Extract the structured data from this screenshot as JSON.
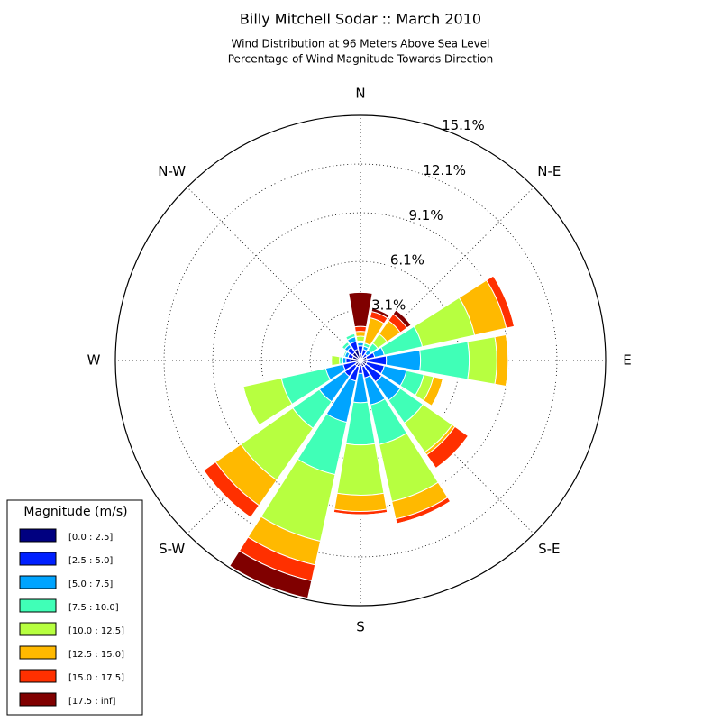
{
  "chart_data": {
    "type": "windrose",
    "title": "Billy Mitchell Sodar :: March 2010",
    "subtitle": [
      "Wind Distribution at 96 Meters Above Sea Level",
      "Percentage of Wind Magnitude Towards Direction"
    ],
    "direction_labels": [
      "N",
      "N-E",
      "E",
      "S-E",
      "S",
      "S-W",
      "W",
      "N-W"
    ],
    "x": [
      0,
      22.5,
      45,
      67.5,
      90,
      112.5,
      135,
      157.5,
      180,
      202.5,
      225,
      247.5,
      270,
      292.5,
      315,
      337.5
    ],
    "ylim": [
      0,
      15.1
    ],
    "yticks": [
      {
        "value": 3.1,
        "label": "3.1%"
      },
      {
        "value": 6.1,
        "label": "6.1%"
      },
      {
        "value": 9.1,
        "label": "9.1%"
      },
      {
        "value": 12.1,
        "label": "12.1%"
      },
      {
        "value": 15.1,
        "label": "15.1%"
      }
    ],
    "grid": true,
    "legend_title": "Magnitude (m/s)",
    "legend": "lower left",
    "series": [
      {
        "name": "[0.0 : 2.5]",
        "color": "#000080",
        "values": [
          0.4,
          0.3,
          0.2,
          0.4,
          0.4,
          0.4,
          0.4,
          0.4,
          0.3,
          0.4,
          0.4,
          0.3,
          0.6,
          0.5,
          0.6,
          0.7
        ]
      },
      {
        "name": "[2.5 : 5.0]",
        "color": "#0020ff",
        "values": [
          0.5,
          0.4,
          0.3,
          0.5,
          1.2,
          1.1,
          1.2,
          0.7,
          0.5,
          0.9,
          0.8,
          0.8,
          0.3,
          0.3,
          0.4,
          0.5
        ]
      },
      {
        "name": "[5.0 : 7.5]",
        "color": "#00a4ff",
        "values": [
          0.2,
          0.2,
          0.3,
          0.6,
          2.1,
          1.4,
          1.4,
          1.7,
          1.8,
          2.6,
          1.9,
          1.1,
          0.2,
          0.2,
          0.2,
          0.3
        ]
      },
      {
        "name": "[7.5 : 10.0]",
        "color": "#40ffb7",
        "values": [
          0.1,
          0.2,
          0.5,
          2.4,
          3.0,
          1.1,
          1.7,
          2.5,
          2.6,
          3.3,
          2.0,
          2.8,
          0.2,
          0.1,
          0.2,
          0.2
        ]
      },
      {
        "name": "[10.0 : 12.5]",
        "color": "#b7ff40",
        "values": [
          0.3,
          0.0,
          0.7,
          3.3,
          1.7,
          0.6,
          2.2,
          3.6,
          3.1,
          4.2,
          3.9,
          2.4,
          0.5,
          0,
          0,
          0
        ]
      },
      {
        "name": "[12.5 : 15.0]",
        "color": "#ffb900",
        "values": [
          0.3,
          1.6,
          1.0,
          2.0,
          0.7,
          0.6,
          0.2,
          1.1,
          1.0,
          1.5,
          1.9,
          0,
          0,
          0,
          0,
          0
        ]
      },
      {
        "name": "[15.0 : 17.5]",
        "color": "#ff3000",
        "values": [
          0.3,
          0.4,
          0.5,
          0.5,
          0,
          0,
          1.0,
          0.3,
          0.2,
          1.0,
          0.9,
          0,
          0,
          0,
          0,
          0
        ]
      },
      {
        "name": "[17.5 : inf]",
        "color": "#800000",
        "values": [
          2.1,
          0.2,
          0.3,
          0,
          0,
          0,
          0,
          0,
          0,
          1.1,
          0,
          0,
          0,
          0,
          0,
          0
        ]
      }
    ]
  }
}
